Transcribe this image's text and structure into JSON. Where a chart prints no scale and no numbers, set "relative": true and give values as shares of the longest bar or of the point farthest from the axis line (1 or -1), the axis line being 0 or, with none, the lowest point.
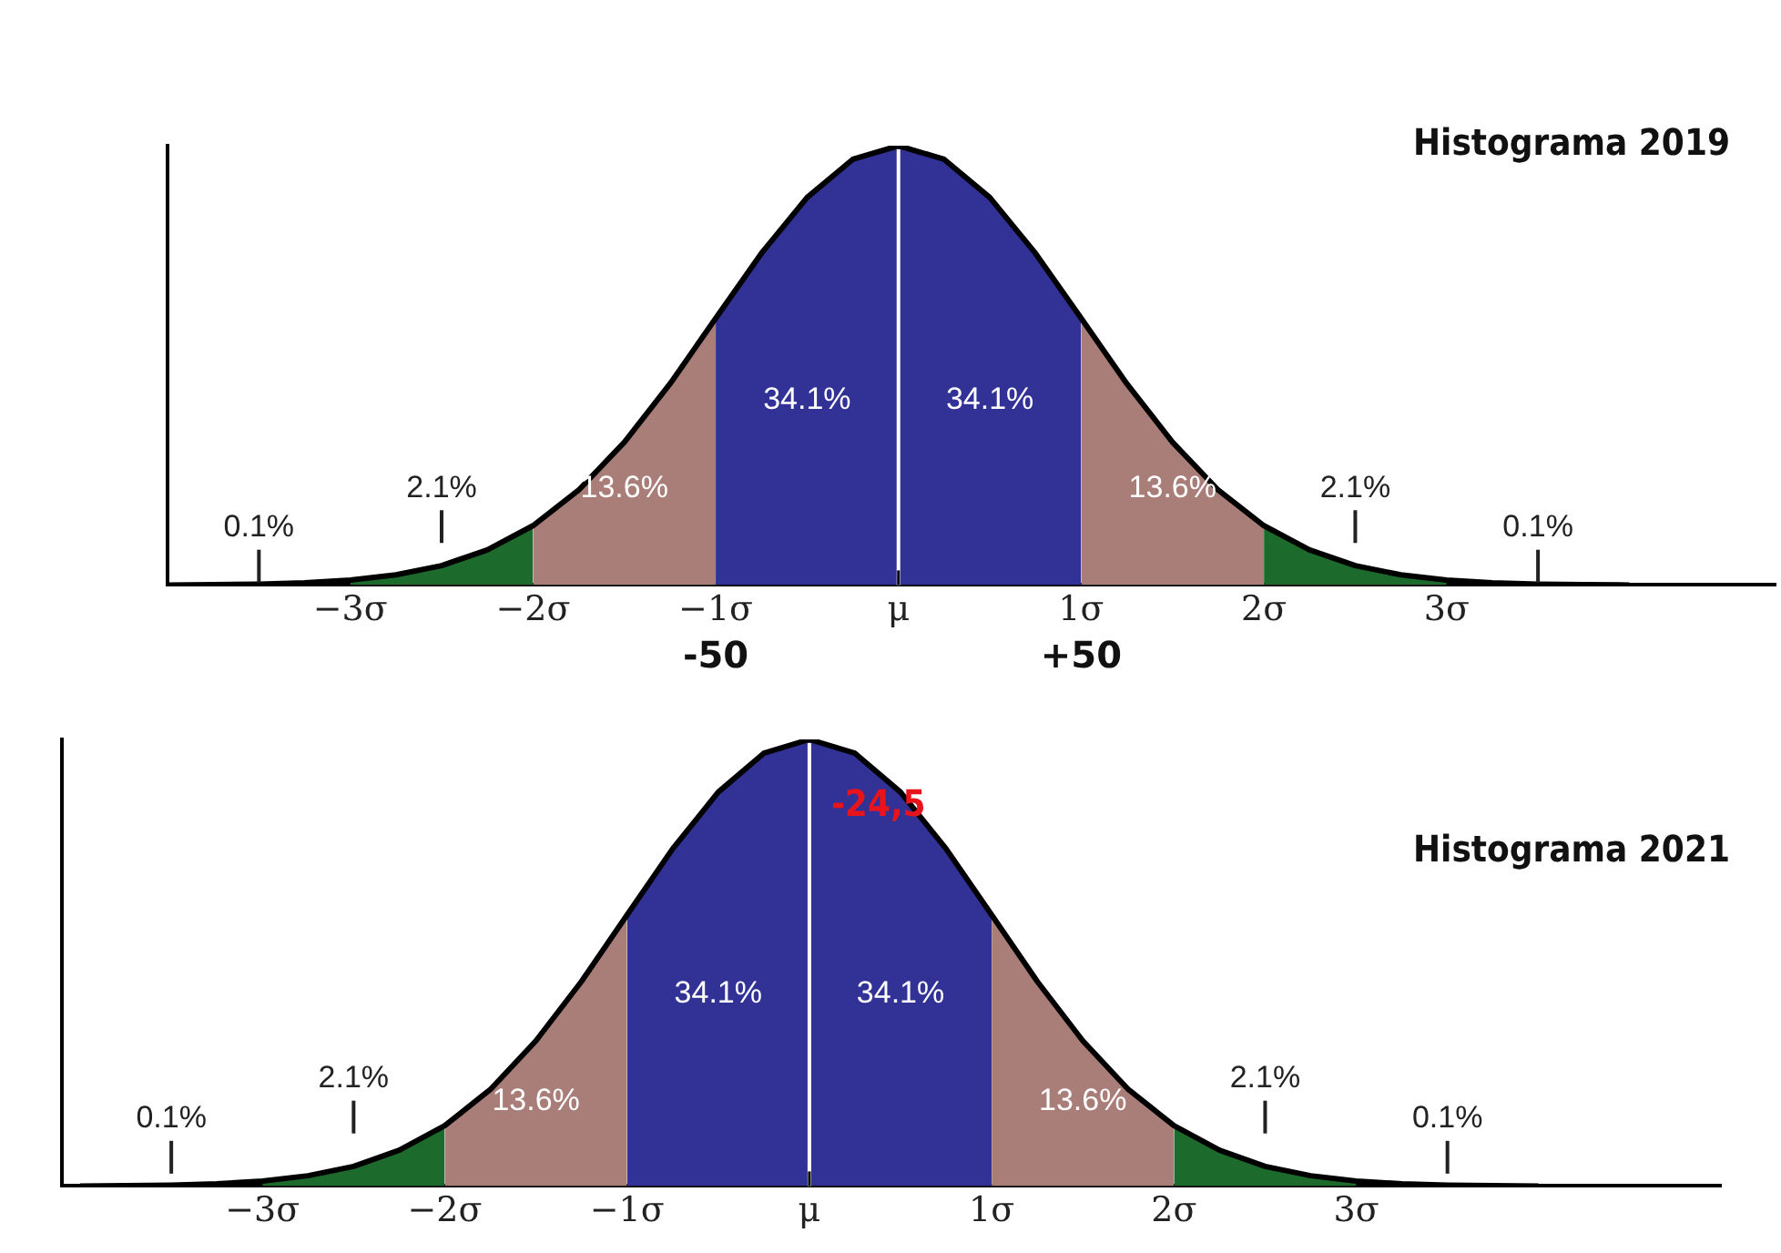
{
  "chart_data": [
    {
      "type": "area",
      "relative": true,
      "title": "Histograma 2019",
      "xlim": [
        -4,
        4.8
      ],
      "xticks": [
        {
          "value": -3,
          "label": "−3σ"
        },
        {
          "value": -2,
          "label": "−2σ"
        },
        {
          "value": -1,
          "label": "−1σ"
        },
        {
          "value": 0,
          "label": "μ"
        },
        {
          "value": 1,
          "label": "1σ"
        },
        {
          "value": 2,
          "label": "2σ"
        },
        {
          "value": 3,
          "label": "3σ"
        }
      ],
      "tick_labels": "x",
      "grid": false,
      "legend": false,
      "series": [
        {
          "type": "area",
          "color": "#1c6b2c",
          "x": [
            -3,
            -2.75,
            -2.5,
            -2.25,
            -2
          ],
          "values": [
            0.011,
            0.023,
            0.044,
            0.08,
            0.135
          ]
        },
        {
          "type": "area",
          "color": "#a97d78",
          "x": [
            -2,
            -1.75,
            -1.5,
            -1.25,
            -1
          ],
          "values": [
            0.135,
            0.216,
            0.325,
            0.458,
            0.607
          ]
        },
        {
          "type": "area",
          "color": "#313196",
          "x": [
            -1,
            -0.75,
            -0.5,
            -0.25,
            0
          ],
          "values": [
            0.607,
            0.755,
            0.882,
            0.969,
            1
          ]
        },
        {
          "type": "area",
          "color": "#313196",
          "x": [
            0,
            0.25,
            0.5,
            0.75,
            1
          ],
          "values": [
            1,
            0.969,
            0.882,
            0.755,
            0.607
          ]
        },
        {
          "type": "area",
          "color": "#a97d78",
          "x": [
            1,
            1.25,
            1.5,
            1.75,
            2
          ],
          "values": [
            0.607,
            0.458,
            0.325,
            0.216,
            0.135
          ]
        },
        {
          "type": "area",
          "color": "#1c6b2c",
          "x": [
            2,
            2.25,
            2.5,
            2.75,
            3
          ],
          "values": [
            0.135,
            0.08,
            0.044,
            0.023,
            0.011
          ]
        },
        {
          "type": "line",
          "color": "#000000",
          "x": [
            -4,
            -3.75,
            -3.5,
            -3.25,
            -3,
            -2.75,
            -2.5,
            -2.25,
            -2,
            -1.75,
            -1.5,
            -1.25,
            -1,
            -0.75,
            -0.5,
            -0.25,
            0,
            0.25,
            0.5,
            0.75,
            1,
            1.25,
            1.5,
            1.75,
            2,
            2.25,
            2.5,
            2.75,
            3,
            3.25,
            3.5,
            3.75,
            4
          ],
          "values": [
            0,
            0.001,
            0.002,
            0.005,
            0.011,
            0.023,
            0.044,
            0.08,
            0.135,
            0.216,
            0.325,
            0.458,
            0.607,
            0.755,
            0.882,
            0.969,
            1,
            0.969,
            0.882,
            0.755,
            0.607,
            0.458,
            0.325,
            0.216,
            0.135,
            0.08,
            0.044,
            0.023,
            0.011,
            0.005,
            0.002,
            0.001,
            0
          ]
        }
      ],
      "ref_lines": [
        {
          "axis": "x",
          "value": 0,
          "color": "#ffffff"
        }
      ],
      "annotations": [
        "34.1%",
        "34.1%",
        "13.6%",
        "13.6%",
        "2.1%",
        "2.1%",
        "0.1%",
        "0.1%",
        "-50",
        "+50"
      ]
    },
    {
      "type": "area",
      "relative": true,
      "title": "Histograma 2021",
      "xlim": [
        -4.1,
        5
      ],
      "xticks": [
        {
          "value": -3,
          "label": "−3σ"
        },
        {
          "value": -2,
          "label": "−2σ"
        },
        {
          "value": -1,
          "label": "−1σ"
        },
        {
          "value": 0,
          "label": "μ"
        },
        {
          "value": 1,
          "label": "1σ"
        },
        {
          "value": 2,
          "label": "2σ"
        },
        {
          "value": 3,
          "label": "3σ"
        }
      ],
      "tick_labels": "x",
      "grid": false,
      "legend": false,
      "series": [
        {
          "type": "area",
          "color": "#1c6b2c",
          "x": [
            -3,
            -2.75,
            -2.5,
            -2.25,
            -2
          ],
          "values": [
            0.011,
            0.023,
            0.044,
            0.08,
            0.135
          ]
        },
        {
          "type": "area",
          "color": "#a97d78",
          "x": [
            -2,
            -1.75,
            -1.5,
            -1.25,
            -1
          ],
          "values": [
            0.135,
            0.216,
            0.325,
            0.458,
            0.607
          ]
        },
        {
          "type": "area",
          "color": "#313196",
          "x": [
            -1,
            -0.75,
            -0.5,
            -0.25,
            0
          ],
          "values": [
            0.607,
            0.755,
            0.882,
            0.969,
            1
          ]
        },
        {
          "type": "area",
          "color": "#313196",
          "x": [
            0,
            0.25,
            0.5,
            0.75,
            1
          ],
          "values": [
            1,
            0.969,
            0.882,
            0.755,
            0.607
          ]
        },
        {
          "type": "area",
          "color": "#a97d78",
          "x": [
            1,
            1.25,
            1.5,
            1.75,
            2
          ],
          "values": [
            0.607,
            0.458,
            0.325,
            0.216,
            0.135
          ]
        },
        {
          "type": "area",
          "color": "#1c6b2c",
          "x": [
            2,
            2.25,
            2.5,
            2.75,
            3
          ],
          "values": [
            0.135,
            0.08,
            0.044,
            0.023,
            0.011
          ]
        },
        {
          "type": "line",
          "color": "#000000",
          "x": [
            -4,
            -3.75,
            -3.5,
            -3.25,
            -3,
            -2.75,
            -2.5,
            -2.25,
            -2,
            -1.75,
            -1.5,
            -1.25,
            -1,
            -0.75,
            -0.5,
            -0.25,
            0,
            0.25,
            0.5,
            0.75,
            1,
            1.25,
            1.5,
            1.75,
            2,
            2.25,
            2.5,
            2.75,
            3,
            3.25,
            3.5,
            3.75,
            4
          ],
          "values": [
            0,
            0.001,
            0.002,
            0.005,
            0.011,
            0.023,
            0.044,
            0.08,
            0.135,
            0.216,
            0.325,
            0.458,
            0.607,
            0.755,
            0.882,
            0.969,
            1,
            0.969,
            0.882,
            0.755,
            0.607,
            0.458,
            0.325,
            0.216,
            0.135,
            0.08,
            0.044,
            0.023,
            0.011,
            0.005,
            0.002,
            0.001,
            0
          ]
        }
      ],
      "ref_lines": [
        {
          "axis": "x",
          "value": 0,
          "color": "#ffffff"
        }
      ],
      "annotations": [
        "34.1%",
        "34.1%",
        "13.6%",
        "13.6%",
        "2.1%",
        "2.1%",
        "0.1%",
        "0.1%",
        "-24,5"
      ]
    }
  ]
}
